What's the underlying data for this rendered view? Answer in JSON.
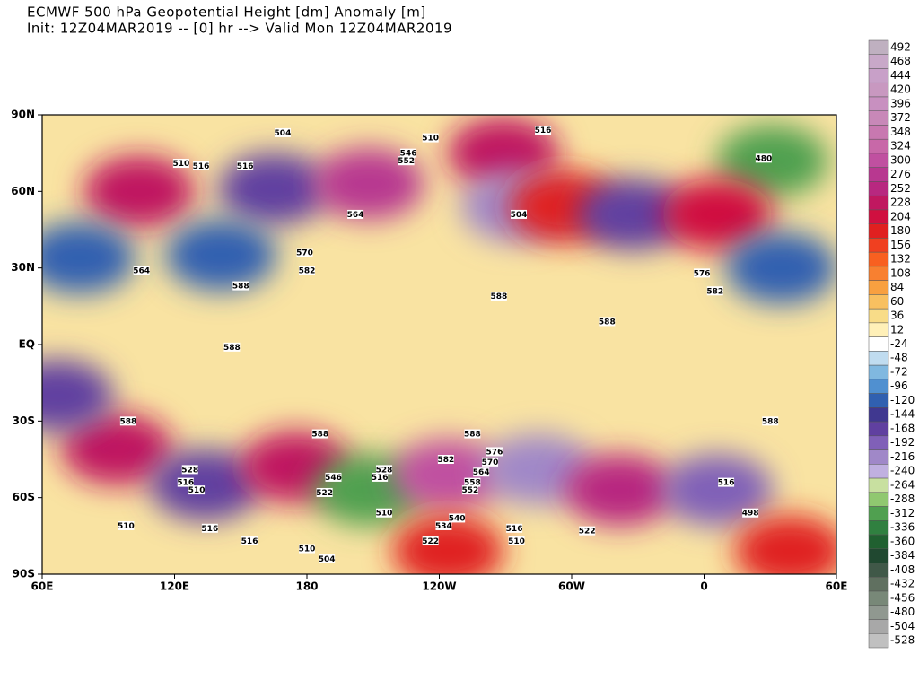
{
  "map": {
    "title_line1": "ECMWF 500 hPa Geopotential Height [dm] Anomaly [m]",
    "title_line2": "Init: 12Z04MAR2019 -- [0] hr --> Valid Mon 12Z04MAR2019",
    "xlim": [
      60,
      420
    ],
    "ylim": [
      -90,
      90
    ],
    "xticks": [
      {
        "value": 60,
        "label": "60E"
      },
      {
        "value": 120,
        "label": "120E"
      },
      {
        "value": 180,
        "label": "180"
      },
      {
        "value": 240,
        "label": "120W"
      },
      {
        "value": 300,
        "label": "60W"
      },
      {
        "value": 360,
        "label": "0"
      },
      {
        "value": 420,
        "label": "60E"
      }
    ],
    "yticks": [
      {
        "value": 90,
        "label": "90N"
      },
      {
        "value": 60,
        "label": "60N"
      },
      {
        "value": 30,
        "label": "30N"
      },
      {
        "value": 0,
        "label": "EQ"
      },
      {
        "value": -30,
        "label": "30S"
      },
      {
        "value": -60,
        "label": "60S"
      },
      {
        "value": -90,
        "label": "90S"
      }
    ],
    "background_color": "#f9e3a2",
    "anomaly_centers": [
      {
        "lon": 104,
        "lat": 60,
        "value": 250
      },
      {
        "lon": 165,
        "lat": 61,
        "value": -150
      },
      {
        "lon": 208,
        "lat": 63,
        "value": 280
      },
      {
        "lon": 269,
        "lat": 75,
        "value": 250
      },
      {
        "lon": 275,
        "lat": 54,
        "value": -200
      },
      {
        "lon": 297,
        "lat": 54,
        "value": 200
      },
      {
        "lon": 328,
        "lat": 51,
        "value": -150
      },
      {
        "lon": 391,
        "lat": 72,
        "value": -300
      },
      {
        "lon": 366,
        "lat": 51,
        "value": 220
      },
      {
        "lon": 395,
        "lat": 30,
        "value": -100
      },
      {
        "lon": 77,
        "lat": 34,
        "value": -100
      },
      {
        "lon": 141,
        "lat": 35,
        "value": -100
      },
      {
        "lon": 94,
        "lat": -41,
        "value": 240
      },
      {
        "lon": 134,
        "lat": -55,
        "value": -150
      },
      {
        "lon": 175,
        "lat": -48,
        "value": 250
      },
      {
        "lon": 208,
        "lat": -57,
        "value": -300
      },
      {
        "lon": 244,
        "lat": -51,
        "value": 300
      },
      {
        "lon": 285,
        "lat": -49,
        "value": -200
      },
      {
        "lon": 322,
        "lat": -57,
        "value": 260
      },
      {
        "lon": 366,
        "lat": -57,
        "value": -180
      },
      {
        "lon": 67,
        "lat": -20,
        "value": -150
      },
      {
        "lon": 244,
        "lat": -81,
        "value": 200
      },
      {
        "lon": 399,
        "lat": -81,
        "value": 200
      }
    ],
    "contour_labels": [
      {
        "lon": 169,
        "lat": 83,
        "value": 504
      },
      {
        "lon": 236,
        "lat": 81,
        "value": 510
      },
      {
        "lon": 287,
        "lat": 84,
        "value": 516
      },
      {
        "lon": 226,
        "lat": 75,
        "value": 546
      },
      {
        "lon": 225,
        "lat": 72,
        "value": 552
      },
      {
        "lon": 123,
        "lat": 71,
        "value": 510
      },
      {
        "lon": 132,
        "lat": 70,
        "value": 516
      },
      {
        "lon": 152,
        "lat": 70,
        "value": 516
      },
      {
        "lon": 202,
        "lat": 51,
        "value": 564
      },
      {
        "lon": 387,
        "lat": 73,
        "value": 480
      },
      {
        "lon": 276,
        "lat": 51,
        "value": 504
      },
      {
        "lon": 179,
        "lat": 36,
        "value": 570
      },
      {
        "lon": 180,
        "lat": 29,
        "value": 582
      },
      {
        "lon": 150,
        "lat": 23,
        "value": 588
      },
      {
        "lon": 105,
        "lat": 29,
        "value": 564
      },
      {
        "lon": 267,
        "lat": 19,
        "value": 588
      },
      {
        "lon": 316,
        "lat": 9,
        "value": 588
      },
      {
        "lon": 146,
        "lat": -1,
        "value": 588
      },
      {
        "lon": 99,
        "lat": -30,
        "value": 588
      },
      {
        "lon": 186,
        "lat": -35,
        "value": 588
      },
      {
        "lon": 255,
        "lat": -35,
        "value": 588
      },
      {
        "lon": 127,
        "lat": -49,
        "value": 528
      },
      {
        "lon": 125,
        "lat": -54,
        "value": 516
      },
      {
        "lon": 130,
        "lat": -57,
        "value": 510
      },
      {
        "lon": 192,
        "lat": -52,
        "value": 546
      },
      {
        "lon": 188,
        "lat": -58,
        "value": 522
      },
      {
        "lon": 215,
        "lat": -49,
        "value": 528
      },
      {
        "lon": 213,
        "lat": -52,
        "value": 516
      },
      {
        "lon": 215,
        "lat": -66,
        "value": 510
      },
      {
        "lon": 248,
        "lat": -68,
        "value": 540
      },
      {
        "lon": 242,
        "lat": -71,
        "value": 534
      },
      {
        "lon": 236,
        "lat": -77,
        "value": 522
      },
      {
        "lon": 274,
        "lat": -72,
        "value": 516
      },
      {
        "lon": 275,
        "lat": -77,
        "value": 510
      },
      {
        "lon": 307,
        "lat": -73,
        "value": 522
      },
      {
        "lon": 381,
        "lat": -66,
        "value": 498
      },
      {
        "lon": 370,
        "lat": -54,
        "value": 516
      },
      {
        "lon": 98,
        "lat": -71,
        "value": 510
      },
      {
        "lon": 136,
        "lat": -72,
        "value": 516
      },
      {
        "lon": 154,
        "lat": -77,
        "value": 516
      },
      {
        "lon": 180,
        "lat": -80,
        "value": 510
      },
      {
        "lon": 189,
        "lat": -84,
        "value": 504
      },
      {
        "lon": 265,
        "lat": -42,
        "value": 576
      },
      {
        "lon": 263,
        "lat": -46,
        "value": 570
      },
      {
        "lon": 259,
        "lat": -50,
        "value": 564
      },
      {
        "lon": 255,
        "lat": -54,
        "value": 558
      },
      {
        "lon": 254,
        "lat": -57,
        "value": 552
      },
      {
        "lon": 243,
        "lat": -45,
        "value": 582
      },
      {
        "lon": 359,
        "lat": 28,
        "value": 576
      },
      {
        "lon": 365,
        "lat": 21,
        "value": 582
      },
      {
        "lon": 390,
        "lat": -30,
        "value": 588
      }
    ],
    "colorbar": {
      "levels": [
        492,
        468,
        444,
        420,
        396,
        372,
        348,
        324,
        300,
        276,
        252,
        228,
        204,
        180,
        156,
        132,
        108,
        84,
        60,
        36,
        12,
        -24,
        -48,
        -72,
        -96,
        -120,
        -144,
        -168,
        -192,
        -216,
        -240,
        -264,
        -288,
        -312,
        -336,
        -360,
        -384,
        -408,
        -432,
        -456,
        -480,
        -504,
        -528
      ],
      "colors": [
        "#bfb0c0",
        "#c8a8c8",
        "#c8a0c8",
        "#c898c0",
        "#c890c0",
        "#c888b8",
        "#c878b0",
        "#c868a8",
        "#c050a0",
        "#b83890",
        "#b82880",
        "#c01860",
        "#d01040",
        "#e02020",
        "#f04020",
        "#f86020",
        "#f88030",
        "#f8a040",
        "#f8c060",
        "#f8dc88",
        "#fff0b8",
        "#ffffff",
        "#c0dcf0",
        "#80b8e0",
        "#5090d0",
        "#3060b0",
        "#403890",
        "#6040a0",
        "#8060b8",
        "#a088c8",
        "#c0b0e0",
        "#c8e0a0",
        "#90c870",
        "#50a050",
        "#308040",
        "#206030",
        "#204830",
        "#405848",
        "#607060",
        "#788878",
        "#909890",
        "#a8a8a8",
        "#c0c0c0"
      ]
    }
  }
}
